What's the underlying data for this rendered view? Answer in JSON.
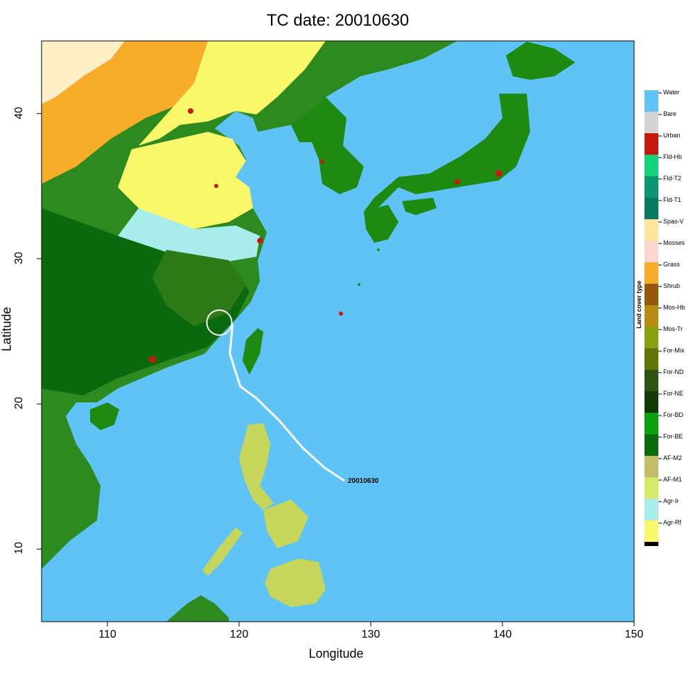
{
  "title": "TC date: 20010630",
  "xlabel": "Longitude",
  "ylabel": "Latitude",
  "legend_title": "Land cover type",
  "track_label": "20010630",
  "colors": {
    "water": "#5fc4f5",
    "coast": "#1a1a1a",
    "track": "#ffffff"
  },
  "chart_data": {
    "type": "map",
    "xlim": [
      105,
      150
    ],
    "ylim": [
      5,
      45
    ],
    "xticks": [
      "110",
      "120",
      "130",
      "140",
      "150"
    ],
    "yticks": [
      "10",
      "20",
      "30",
      "40"
    ],
    "xtick_values": [
      110,
      120,
      130,
      140,
      150
    ],
    "ytick_values": [
      10,
      20,
      30,
      40
    ],
    "storm_center": {
      "lon": 118.5,
      "lat": 25.6
    },
    "track": [
      {
        "lon": 128.0,
        "lat": 14.7
      },
      {
        "lon": 126.5,
        "lat": 15.6
      },
      {
        "lon": 124.8,
        "lat": 17.0
      },
      {
        "lon": 123.0,
        "lat": 18.9
      },
      {
        "lon": 121.3,
        "lat": 20.4
      },
      {
        "lon": 120.1,
        "lat": 21.2
      },
      {
        "lon": 119.7,
        "lat": 22.3
      },
      {
        "lon": 119.3,
        "lat": 23.5
      },
      {
        "lon": 119.4,
        "lat": 24.4
      },
      {
        "lon": 119.5,
        "lat": 25.5
      }
    ],
    "legend": [
      {
        "label": "Water",
        "color": "#5fc4f5"
      },
      {
        "label": "Bare",
        "color": "#d3d3d3"
      },
      {
        "label": "Urban",
        "color": "#c8190e"
      },
      {
        "label": "Fld-Hb",
        "color": "#12d27a"
      },
      {
        "label": "Fld-T2",
        "color": "#0b9672"
      },
      {
        "label": "Fld-T1",
        "color": "#087a60"
      },
      {
        "label": "Spas-V",
        "color": "#fde59b"
      },
      {
        "label": "Mosses",
        "color": "#fcd7d2"
      },
      {
        "label": "Grass",
        "color": "#f7ad2a"
      },
      {
        "label": "Shrub",
        "color": "#94580b"
      },
      {
        "label": "Mos-Hb",
        "color": "#b78b14"
      },
      {
        "label": "Mos-Tr",
        "color": "#889f0e"
      },
      {
        "label": "For-Mix",
        "color": "#617406"
      },
      {
        "label": "For-ND",
        "color": "#2f5311"
      },
      {
        "label": "For-NE",
        "color": "#123a06"
      },
      {
        "label": "For-BD",
        "color": "#0aa10a"
      },
      {
        "label": "For-BE",
        "color": "#0b6a0e"
      },
      {
        "label": "AF-M2",
        "color": "#c2bd66"
      },
      {
        "label": "AF-M1",
        "color": "#d4e967"
      },
      {
        "label": "Agr-Ir",
        "color": "#a9ecec"
      },
      {
        "label": "Agr-Rf",
        "color": "#f9f76a"
      }
    ]
  }
}
